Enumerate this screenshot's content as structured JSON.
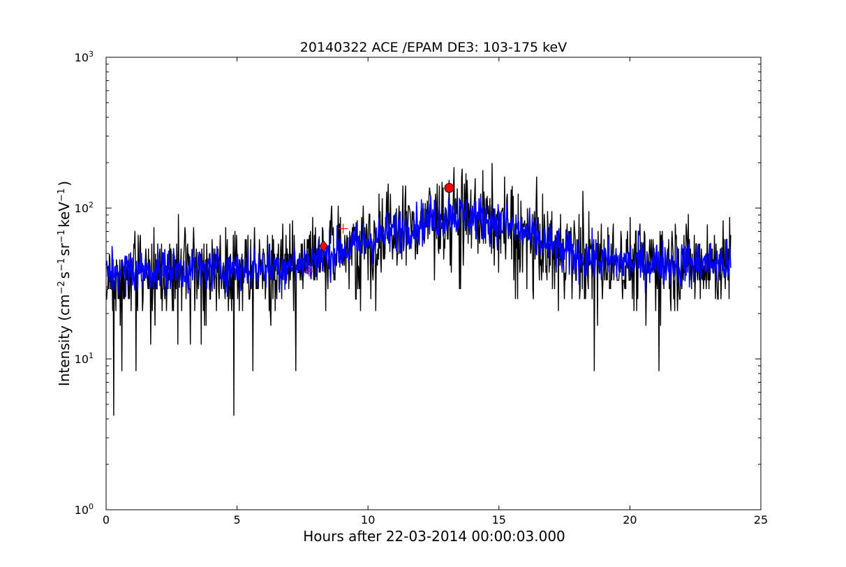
{
  "chart_data": {
    "type": "line",
    "title": "20140322 ACE /EPAM DE3: 103-175 keV",
    "xlabel": "Hours after 22-03-2014 00:00:03.000",
    "ylabel": {
      "prefix": "Intensity (cm",
      "exp1": "−2",
      "mid1": "s",
      "exp2": "−1",
      "mid2": "sr",
      "exp3": "−1",
      "mid3": "keV",
      "exp4": "−1",
      "suffix": ")"
    },
    "xlim": [
      0,
      25
    ],
    "ylim": [
      1,
      1000
    ],
    "yscale": "log",
    "grid": false,
    "xticks": [
      {
        "value": 0,
        "label": "0"
      },
      {
        "value": 5,
        "label": "5"
      },
      {
        "value": 10,
        "label": "10"
      },
      {
        "value": 15,
        "label": "15"
      },
      {
        "value": 20,
        "label": "20"
      },
      {
        "value": 25,
        "label": "25"
      }
    ],
    "yticks": [
      {
        "value": 1,
        "base": "10",
        "exp": "0"
      },
      {
        "value": 10,
        "base": "10",
        "exp": "1"
      },
      {
        "value": 100,
        "base": "10",
        "exp": "2"
      },
      {
        "value": 1000,
        "base": "10",
        "exp": "3"
      }
    ],
    "series": [
      {
        "color": "#000000",
        "style": "raw intensity, noisy",
        "baseline": [
          [
            0,
            38
          ],
          [
            3,
            39
          ],
          [
            6,
            40
          ],
          [
            7.5,
            43
          ],
          [
            9,
            52
          ],
          [
            10.5,
            65
          ],
          [
            12,
            80
          ],
          [
            13.2,
            92
          ],
          [
            14.5,
            85
          ],
          [
            16,
            68
          ],
          [
            17.5,
            50
          ],
          [
            19,
            44
          ],
          [
            22,
            43
          ],
          [
            23.85,
            43
          ]
        ],
        "notable_values": [
          {
            "x": 0.3,
            "y": 4.2
          },
          {
            "x": 4.88,
            "y": 4.2
          },
          {
            "x": 0.6,
            "y": 8.3
          },
          {
            "x": 1.15,
            "y": 8.3
          },
          {
            "x": 5.6,
            "y": 8.3
          },
          {
            "x": 7.25,
            "y": 8.3
          },
          {
            "x": 18.65,
            "y": 8.3
          },
          {
            "x": 21.1,
            "y": 8.3
          },
          {
            "x": 13.4,
            "y": 135
          },
          {
            "x": 15.5,
            "y": 140
          },
          {
            "x": 18.2,
            "y": 130
          },
          {
            "x": 22.95,
            "y": 78
          }
        ]
      },
      {
        "color": "#0000ff",
        "style": "smoothed intensity",
        "baseline": [
          [
            0,
            38
          ],
          [
            3,
            39
          ],
          [
            6,
            40
          ],
          [
            7.5,
            43
          ],
          [
            9,
            52
          ],
          [
            10.5,
            65
          ],
          [
            12,
            80
          ],
          [
            13.2,
            92
          ],
          [
            14.5,
            85
          ],
          [
            16,
            68
          ],
          [
            17.5,
            50
          ],
          [
            19,
            44
          ],
          [
            22,
            43
          ],
          [
            23.85,
            43
          ]
        ]
      }
    ],
    "markers": [
      {
        "shape": "circle",
        "color": "#ff0000",
        "x": 13.1,
        "y": 136
      },
      {
        "shape": "diamond",
        "color": "#ff0000",
        "x": 8.3,
        "y": 56
      },
      {
        "shape": "plus",
        "color": "#ff0000",
        "x": 7.75,
        "y": 38
      },
      {
        "shape": "plus",
        "color": "#ff0000",
        "x": 9.05,
        "y": 73
      }
    ]
  }
}
